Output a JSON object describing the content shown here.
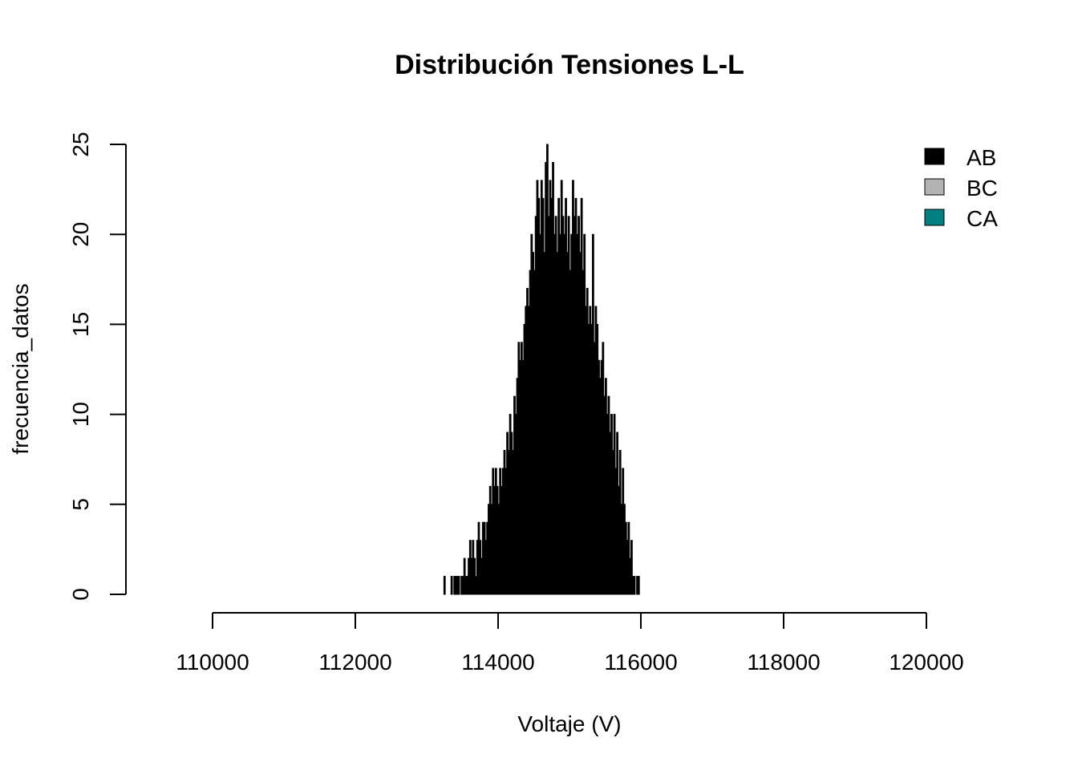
{
  "chart_data": {
    "type": "bar",
    "title": "Distribución Tensiones L-L",
    "xlabel": "Voltaje (V)",
    "ylabel": "frecuencia_datos",
    "xlim": [
      110000,
      120000
    ],
    "ylim": [
      0,
      25
    ],
    "x_ticks": [
      "110000",
      "112000",
      "114000",
      "116000",
      "118000",
      "120000"
    ],
    "y_ticks": [
      "0",
      "5",
      "10",
      "15",
      "20",
      "25"
    ],
    "grid": false,
    "legend_position": "top-right",
    "bin_width": 20,
    "series": [
      {
        "name": "AB",
        "color": "#000000",
        "x_start": 113240,
        "values": [
          1,
          0,
          0,
          0,
          0,
          1,
          0,
          1,
          1,
          1,
          1,
          0,
          1,
          1,
          2,
          1,
          1,
          2,
          3,
          2,
          3,
          2,
          1,
          3,
          4,
          3,
          2,
          4,
          4,
          3,
          4,
          5,
          6,
          5,
          7,
          6,
          7,
          6,
          5,
          7,
          6,
          7,
          8,
          7,
          9,
          8,
          10,
          9,
          8,
          11,
          10,
          12,
          14,
          13,
          14,
          13,
          15,
          16,
          17,
          16,
          18,
          20,
          19,
          18,
          21,
          23,
          22,
          20,
          23,
          22,
          19,
          24,
          25,
          21,
          23,
          22,
          24,
          20,
          21,
          19,
          22,
          20,
          23,
          21,
          20,
          22,
          19,
          21,
          18,
          20,
          23,
          21,
          22,
          20,
          21,
          19,
          22,
          18,
          20,
          16,
          17,
          15,
          16,
          15,
          20,
          14,
          16,
          15,
          13,
          12,
          13,
          14,
          11,
          12,
          10,
          11,
          9,
          10,
          8,
          10,
          7,
          9,
          6,
          8,
          5,
          7,
          5,
          4,
          3,
          4,
          2,
          3,
          1,
          1,
          0,
          1,
          1
        ]
      },
      {
        "name": "BC",
        "color": "#b3b3b3",
        "x_start": 113240,
        "values": []
      },
      {
        "name": "CA",
        "color": "#008080",
        "x_start": 113240,
        "values": []
      }
    ]
  }
}
